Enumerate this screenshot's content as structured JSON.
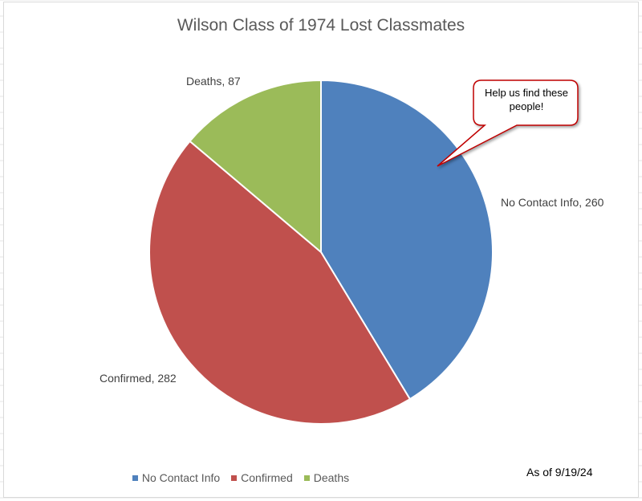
{
  "chart_data": {
    "type": "pie",
    "title": "Wilson Class of 1974 Lost Classmates",
    "categories": [
      "No Contact Info",
      "Confirmed",
      "Deaths"
    ],
    "values": [
      260,
      282,
      87
    ],
    "colors": [
      "#4f81bd",
      "#c0504d",
      "#9bbb59"
    ],
    "data_labels": [
      "No Contact Info, 260",
      "Confirmed, 282",
      "Deaths, 87"
    ],
    "legend": {
      "position": "bottom",
      "entries": [
        "No Contact Info",
        "Confirmed",
        "Deaths"
      ]
    },
    "annotations": {
      "callout": "Help us find these people!",
      "callout_color": "#c00000",
      "note": "As of 9/19/24"
    }
  }
}
